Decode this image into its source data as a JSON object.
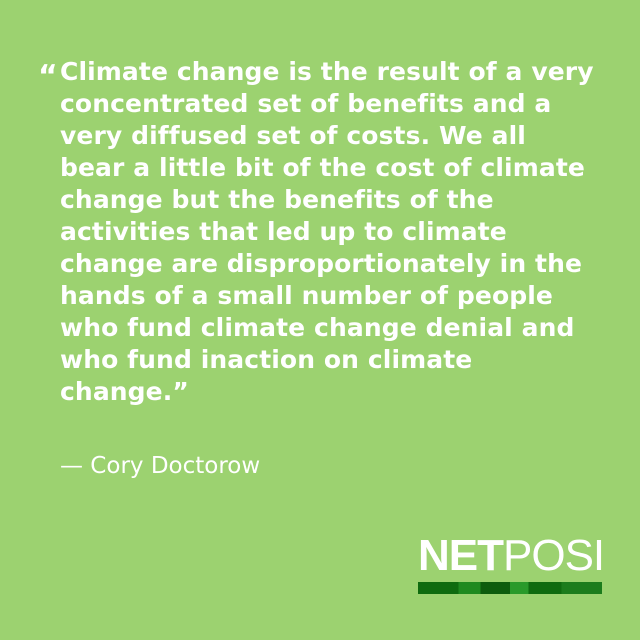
{
  "quote": {
    "open_mark": "“",
    "text": "Climate change is the result of a very concentrated set of benefits and a very diffused set of costs. We all bear a little bit of the cost of climate change but the benefits of the activities that led up to climate change are disproportionately in the hands of a small number of people who fund climate change denial and who fund inaction on climate change.”"
  },
  "attribution": "— Cory Doctorow",
  "logo": {
    "part1": "NET",
    "part2": "POSI"
  },
  "colors": {
    "background": "#9cd270",
    "text": "#ffffff",
    "logo_bar": "#0f6b0f"
  }
}
